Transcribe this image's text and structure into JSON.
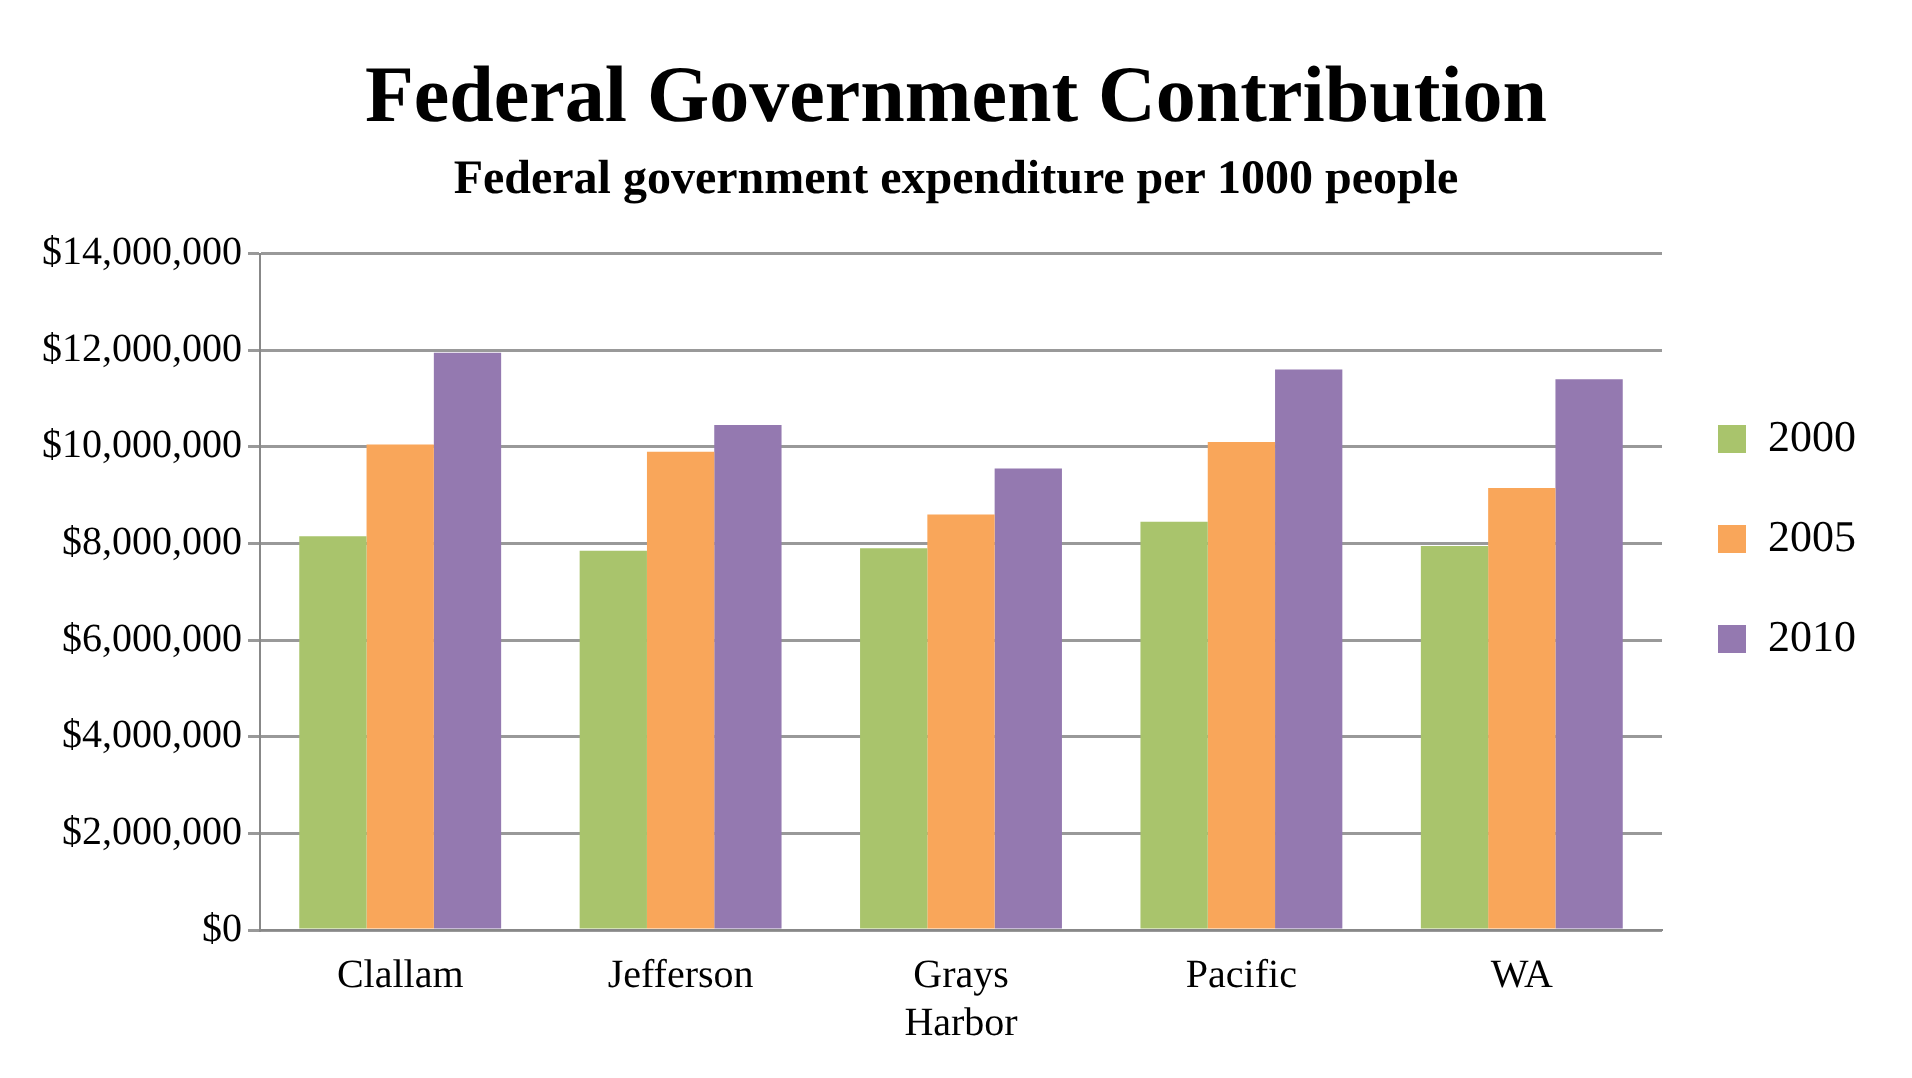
{
  "chart_data": {
    "type": "bar",
    "title": "Federal Government Contribution",
    "subtitle": "Federal government expenditure per 1000 people",
    "categories": [
      "Clallam",
      "Jefferson",
      "Grays Harbor",
      "Pacific",
      "WA"
    ],
    "series": [
      {
        "name": "2000",
        "color": "#a9c46c",
        "values": [
          8150000,
          7850000,
          7900000,
          8450000,
          7950000
        ]
      },
      {
        "name": "2005",
        "color": "#f9a65a",
        "values": [
          10050000,
          9900000,
          8600000,
          10100000,
          9150000
        ]
      },
      {
        "name": "2010",
        "color": "#9479b0",
        "values": [
          11950000,
          10450000,
          9550000,
          11600000,
          11400000
        ]
      }
    ],
    "ylim": [
      0,
      14000000
    ],
    "yticks": [
      {
        "value": 0,
        "label": "$0"
      },
      {
        "value": 2000000,
        "label": "$2,000,000"
      },
      {
        "value": 4000000,
        "label": "$4,000,000"
      },
      {
        "value": 6000000,
        "label": "$6,000,000"
      },
      {
        "value": 8000000,
        "label": "$8,000,000"
      },
      {
        "value": 10000000,
        "label": "$10,000,000"
      },
      {
        "value": 12000000,
        "label": "$12,000,000"
      },
      {
        "value": 14000000,
        "label": "$14,000,000"
      }
    ],
    "grid": "y",
    "legend": "right"
  }
}
